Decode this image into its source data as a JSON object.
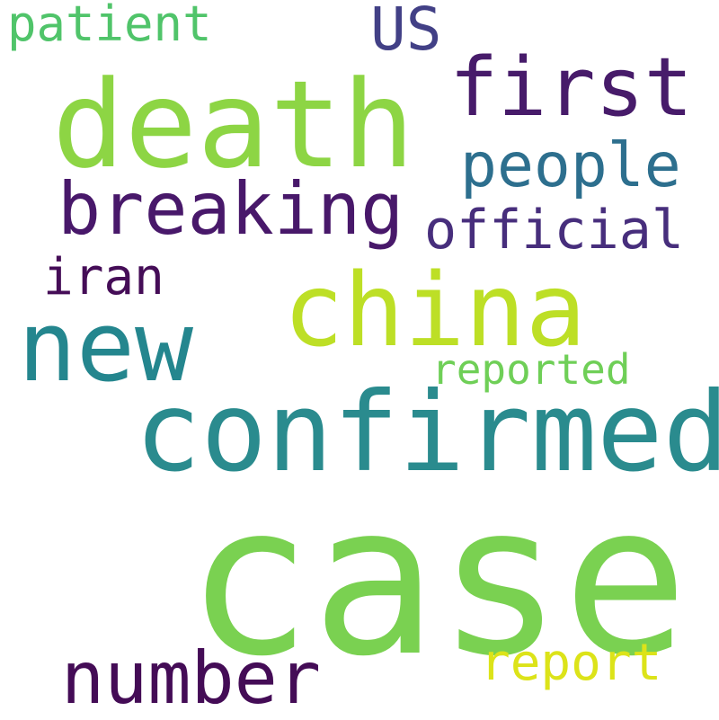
{
  "word_cloud": {
    "background": "#ffffff",
    "words": {
      "case": {
        "text": "case",
        "color": "#7ad151"
      },
      "confirmed": {
        "text": "confirmed",
        "color": "#2a8b8e"
      },
      "death": {
        "text": "death",
        "color": "#8dd544"
      },
      "china": {
        "text": "china",
        "color": "#bddf26"
      },
      "new": {
        "text": "new",
        "color": "#24868e"
      },
      "first": {
        "text": "first",
        "color": "#471b6a"
      },
      "breaking": {
        "text": "breaking",
        "color": "#48186a"
      },
      "number": {
        "text": "number",
        "color": "#440c56"
      },
      "people": {
        "text": "people",
        "color": "#2d6f8e"
      },
      "official": {
        "text": "official",
        "color": "#472e7c"
      },
      "iran": {
        "text": "iran",
        "color": "#450d57"
      },
      "us": {
        "text": "US",
        "color": "#424086"
      },
      "patient": {
        "text": "patient",
        "color": "#50c46a"
      },
      "reported": {
        "text": "reported",
        "color": "#6fcf57"
      },
      "report": {
        "text": "report",
        "color": "#dce319"
      }
    }
  }
}
